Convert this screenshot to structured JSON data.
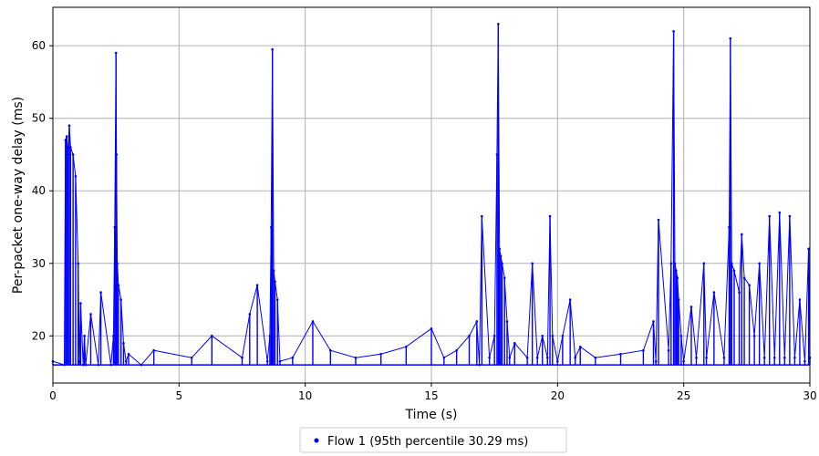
{
  "chart_data": {
    "type": "scatter",
    "title": "",
    "xlabel": "Time (s)",
    "ylabel": "Per-packet one-way delay (ms)",
    "xlim": [
      0,
      30
    ],
    "ylim": [
      13.5,
      65.3
    ],
    "xticks": [
      0,
      5,
      10,
      15,
      20,
      25,
      30
    ],
    "yticks": [
      20,
      30,
      40,
      50,
      60
    ],
    "grid": true,
    "legend_position": "bottom-center",
    "series": [
      {
        "name": "Flow 1 (95th percentile 30.29 ms)",
        "color": "#0000ff",
        "baseline_ms": 16.0,
        "x": [
          0,
          0.45,
          0.5,
          0.55,
          0.6,
          0.65,
          0.7,
          0.8,
          0.9,
          1.0,
          1.05,
          1.1,
          1.2,
          1.25,
          1.3,
          1.5,
          1.8,
          1.9,
          2.3,
          2.4,
          2.45,
          2.5,
          2.52,
          2.55,
          2.6,
          2.7,
          2.8,
          2.9,
          3.0,
          3.5,
          4.0,
          5.5,
          6.3,
          7.5,
          7.8,
          8.1,
          8.5,
          8.6,
          8.65,
          8.7,
          8.75,
          8.8,
          8.9,
          9.0,
          9.5,
          10.3,
          11.0,
          12.0,
          13.0,
          14.0,
          15.0,
          15.5,
          16.0,
          16.5,
          16.8,
          16.9,
          17.0,
          17.3,
          17.5,
          17.6,
          17.65,
          17.7,
          17.75,
          17.8,
          17.9,
          18.0,
          18.1,
          18.3,
          18.8,
          19.0,
          19.2,
          19.4,
          19.6,
          19.7,
          19.8,
          20.0,
          20.2,
          20.5,
          20.7,
          20.9,
          21.5,
          22.5,
          23.4,
          23.8,
          23.9,
          24.0,
          24.4,
          24.5,
          24.6,
          24.65,
          24.7,
          24.75,
          24.8,
          24.9,
          25.0,
          25.3,
          25.5,
          25.8,
          25.9,
          26.2,
          26.6,
          26.8,
          26.85,
          26.9,
          27.0,
          27.2,
          27.3,
          27.4,
          27.6,
          27.8,
          28.0,
          28.2,
          28.4,
          28.6,
          28.8,
          29.0,
          29.2,
          29.4,
          29.6,
          29.8,
          29.95,
          30.0
        ],
        "y": [
          16.5,
          16.0,
          47.0,
          47.5,
          45.0,
          49.0,
          46.0,
          45.0,
          42.0,
          30.0,
          16.5,
          24.5,
          16.0,
          20.0,
          16.0,
          23.0,
          16.0,
          26.0,
          16.0,
          20.0,
          35.0,
          59.0,
          45.0,
          30.0,
          27.0,
          25.0,
          19.0,
          16.5,
          17.5,
          16.0,
          18.0,
          17.0,
          20.0,
          17.0,
          23.0,
          27.0,
          16.5,
          20.0,
          35.0,
          59.5,
          29.0,
          27.5,
          25.0,
          16.5,
          17.0,
          22.0,
          18.0,
          17.0,
          17.5,
          18.5,
          21.0,
          17.0,
          18.0,
          20.0,
          22.0,
          16.0,
          36.5,
          17.0,
          20.0,
          45.0,
          63.0,
          32.0,
          31.0,
          30.0,
          28.0,
          22.0,
          17.0,
          19.0,
          17.0,
          30.0,
          17.0,
          20.0,
          17.0,
          36.5,
          20.0,
          16.5,
          20.0,
          25.0,
          17.0,
          18.5,
          17.0,
          17.5,
          18.0,
          22.0,
          16.5,
          36.0,
          18.0,
          30.0,
          62.0,
          30.0,
          29.0,
          28.0,
          25.0,
          20.0,
          16.5,
          24.0,
          17.0,
          30.0,
          17.0,
          26.0,
          17.0,
          35.0,
          61.0,
          30.0,
          29.0,
          26.0,
          34.0,
          28.0,
          27.0,
          20.0,
          30.0,
          17.0,
          36.5,
          17.0,
          37.0,
          17.0,
          36.5,
          17.0,
          25.0,
          16.5,
          32.0,
          17.0
        ]
      }
    ]
  }
}
